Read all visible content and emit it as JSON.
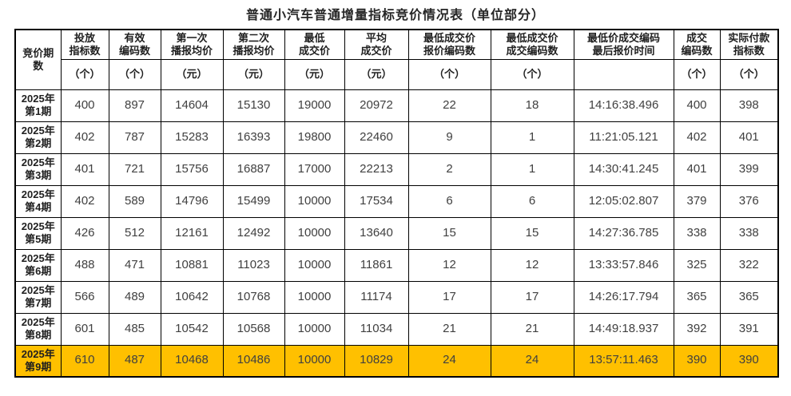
{
  "title": "普通小汽车普通增量指标竞价情况表（单位部分）",
  "colors": {
    "highlight": "#ffc000",
    "border": "#000000",
    "header_text": "#1f1f1f",
    "number_text": "#404040"
  },
  "table": {
    "columns": [
      {
        "label": "竞价期\n数",
        "unit": null
      },
      {
        "label": "投放\n指标数",
        "unit": "（个）"
      },
      {
        "label": "有效\n编码数",
        "unit": "（个）"
      },
      {
        "label": "第一次\n播报均价",
        "unit": "（元）"
      },
      {
        "label": "第二次\n播报均价",
        "unit": "（元）"
      },
      {
        "label": "最低\n成交价",
        "unit": "（元）"
      },
      {
        "label": "平均\n成交价",
        "unit": "（元）"
      },
      {
        "label": "最低成交价\n报价编码数",
        "unit": "（个）"
      },
      {
        "label": "最低成交价\n成交编码数",
        "unit": "（个）"
      },
      {
        "label": "最低价成交编码\n最后报价时间",
        "unit": ""
      },
      {
        "label": "成交\n编码数",
        "unit": "（个）"
      },
      {
        "label": "实际付款\n指标数",
        "unit": "（个）"
      }
    ],
    "rows": [
      {
        "period": "2025年\n第1期",
        "highlight": false,
        "values": [
          "400",
          "897",
          "14604",
          "15130",
          "19000",
          "20972",
          "22",
          "18",
          "14:16:38.496",
          "400",
          "398"
        ]
      },
      {
        "period": "2025年\n第2期",
        "highlight": false,
        "values": [
          "402",
          "787",
          "15283",
          "16393",
          "19800",
          "22460",
          "9",
          "1",
          "11:21:05.121",
          "402",
          "401"
        ]
      },
      {
        "period": "2025年\n第3期",
        "highlight": false,
        "values": [
          "401",
          "721",
          "15756",
          "16887",
          "17000",
          "22213",
          "2",
          "1",
          "14:30:41.245",
          "401",
          "399"
        ]
      },
      {
        "period": "2025年\n第4期",
        "highlight": false,
        "values": [
          "402",
          "589",
          "14796",
          "15499",
          "10000",
          "17534",
          "6",
          "6",
          "12:05:02.807",
          "379",
          "376"
        ]
      },
      {
        "period": "2025年\n第5期",
        "highlight": false,
        "values": [
          "426",
          "512",
          "12161",
          "12492",
          "10000",
          "13640",
          "15",
          "15",
          "14:27:36.785",
          "338",
          "338"
        ]
      },
      {
        "period": "2025年\n第6期",
        "highlight": false,
        "values": [
          "488",
          "471",
          "10881",
          "11023",
          "10000",
          "11861",
          "12",
          "12",
          "13:33:57.846",
          "325",
          "322"
        ]
      },
      {
        "period": "2025年\n第7期",
        "highlight": false,
        "values": [
          "566",
          "489",
          "10642",
          "10768",
          "10000",
          "11174",
          "17",
          "17",
          "14:26:17.794",
          "365",
          "365"
        ]
      },
      {
        "period": "2025年\n第8期",
        "highlight": false,
        "values": [
          "601",
          "485",
          "10542",
          "10568",
          "10000",
          "11034",
          "21",
          "21",
          "14:49:18.937",
          "392",
          "391"
        ]
      },
      {
        "period": "2025年\n第9期",
        "highlight": true,
        "values": [
          "610",
          "487",
          "10468",
          "10486",
          "10000",
          "10829",
          "24",
          "24",
          "13:57:11.463",
          "390",
          "390"
        ]
      }
    ]
  }
}
